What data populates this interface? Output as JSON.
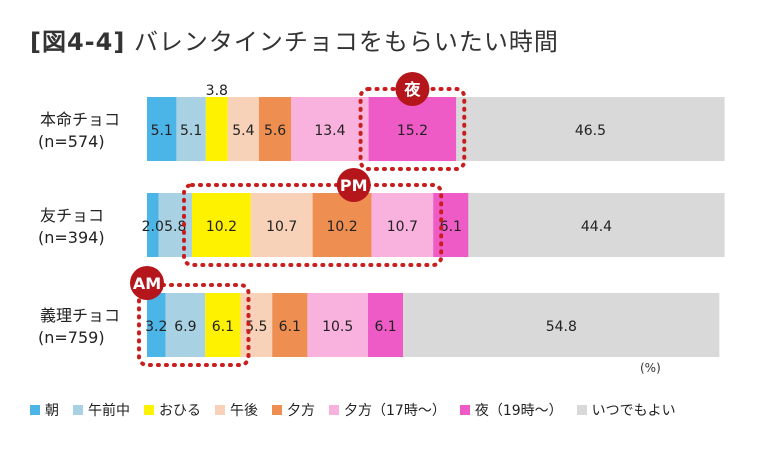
{
  "title": {
    "figure": "[図4-4]",
    "text": "バレンタインチョコをもらいたい時間"
  },
  "unit": "(%)",
  "colors": [
    "#4cb5e8",
    "#a8d2e4",
    "#fff200",
    "#f7d2b8",
    "#ee8f51",
    "#f9b1de",
    "#ef5bc6",
    "#d9d9d9"
  ],
  "chart_data": {
    "type": "bar",
    "stacked": true,
    "orientation": "horizontal",
    "unit": "%",
    "categories": [
      {
        "name": "本命チョコ",
        "n": "(n=574)"
      },
      {
        "name": "友チョコ",
        "n": "(n=394)"
      },
      {
        "name": "義理チョコ",
        "n": "(n=759)"
      }
    ],
    "series": [
      {
        "name": "朝",
        "values": [
          5.1,
          2.0,
          3.2
        ]
      },
      {
        "name": "午前中",
        "values": [
          5.1,
          5.8,
          6.9
        ]
      },
      {
        "name": "おひる",
        "values": [
          3.8,
          10.2,
          6.1
        ]
      },
      {
        "name": "午後",
        "values": [
          5.4,
          10.7,
          5.5
        ]
      },
      {
        "name": "夕方",
        "values": [
          5.6,
          10.2,
          6.1
        ]
      },
      {
        "name": "夕方（17時〜）",
        "values": [
          13.4,
          10.7,
          10.5
        ]
      },
      {
        "name": "夜（19時〜）",
        "values": [
          15.2,
          6.1,
          6.1
        ]
      },
      {
        "name": "いつでもよい",
        "values": [
          46.5,
          44.4,
          54.8
        ]
      }
    ],
    "labels": [
      [
        "5.1",
        "5.1",
        "3.8",
        "5.4",
        "5.6",
        "13.4",
        "15.2",
        "46.5"
      ],
      [
        "2.0",
        "5.8",
        "10.2",
        "10.7",
        "10.2",
        "10.7",
        "6.1",
        "44.4"
      ],
      [
        "3.2",
        "6.9",
        "6.1",
        "5.5",
        "6.1",
        "10.5",
        "6.1",
        "54.8"
      ]
    ],
    "legend_position": "bottom",
    "highlights": [
      {
        "label": "夜",
        "category": 0,
        "from": 6,
        "to": 6
      },
      {
        "label": "PM",
        "category": 1,
        "from": 2,
        "to": 5
      },
      {
        "label": "AM",
        "category": 2,
        "from": 0,
        "to": 2
      }
    ]
  }
}
